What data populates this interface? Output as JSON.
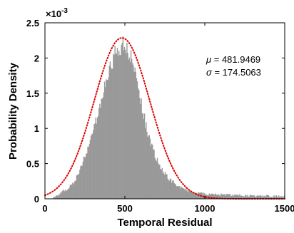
{
  "chart_data": {
    "type": "bar",
    "xlabel": "Temporal Residual",
    "ylabel": "Probability Density",
    "xlim": [
      0,
      1500
    ],
    "ylim": [
      0,
      0.0025
    ],
    "x_ticks": [
      "0",
      "500",
      "1000",
      "1500"
    ],
    "y_ticks": [
      "0",
      "0.5",
      "1",
      "1.5",
      "2",
      "2.5"
    ],
    "y_exponent_prefix": "×10",
    "y_exponent": "-3",
    "grid": false,
    "histogram": {
      "bin_width": 5,
      "color": "#999999",
      "samples": [
        [
          0,
          0
        ],
        [
          25,
          0
        ],
        [
          50,
          0
        ],
        [
          60,
          2e-05
        ],
        [
          75,
          5e-05
        ],
        [
          100,
          8e-05
        ],
        [
          125,
          0.00012
        ],
        [
          150,
          0.00016
        ],
        [
          175,
          0.00022
        ],
        [
          200,
          0.00032
        ],
        [
          225,
          0.00045
        ],
        [
          250,
          0.0006
        ],
        [
          275,
          0.00076
        ],
        [
          300,
          0.00095
        ],
        [
          325,
          0.00115
        ],
        [
          350,
          0.00138
        ],
        [
          375,
          0.0016
        ],
        [
          400,
          0.00182
        ],
        [
          425,
          0.00198
        ],
        [
          450,
          0.0021
        ],
        [
          475,
          0.00218
        ],
        [
          500,
          0.00218
        ],
        [
          525,
          0.00205
        ],
        [
          550,
          0.0019
        ],
        [
          575,
          0.00165
        ],
        [
          600,
          0.00138
        ],
        [
          625,
          0.0011
        ],
        [
          650,
          0.00088
        ],
        [
          675,
          0.0007
        ],
        [
          700,
          0.00055
        ],
        [
          725,
          0.00043
        ],
        [
          750,
          0.00035
        ],
        [
          775,
          0.00029
        ],
        [
          800,
          0.00024
        ],
        [
          825,
          0.0002
        ],
        [
          850,
          0.00016
        ],
        [
          875,
          0.00013
        ],
        [
          900,
          0.00011
        ],
        [
          925,
          9e-05
        ],
        [
          950,
          8e-05
        ],
        [
          1000,
          7e-05
        ],
        [
          1100,
          6e-05
        ],
        [
          1200,
          5e-05
        ],
        [
          1300,
          4e-05
        ],
        [
          1400,
          4e-05
        ],
        [
          1500,
          3e-05
        ]
      ]
    },
    "fit": {
      "type": "normal",
      "mu": 481.9469,
      "sigma": 174.5063,
      "color": "#dd0000",
      "style": "dotted"
    },
    "annotations": [
      {
        "symbol": "μ",
        "text": " = 481.9469"
      },
      {
        "symbol": "σ",
        "text": " = 174.5063"
      }
    ]
  }
}
